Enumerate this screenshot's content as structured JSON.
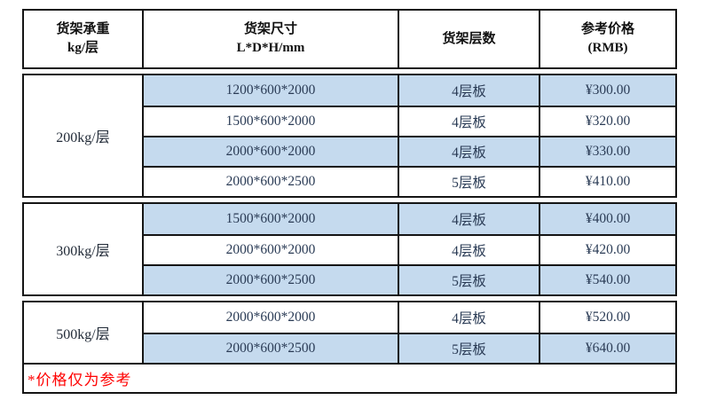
{
  "table": {
    "columns": [
      {
        "line1": "货架承重",
        "line2": "kg/层"
      },
      {
        "line1": "货架尺寸",
        "line2": "L*D*H/mm"
      },
      {
        "line1": "货架层数",
        "line2": ""
      },
      {
        "line1": "参考价格",
        "line2": "(RMB)"
      }
    ],
    "groups": [
      {
        "capacity": "200kg/层",
        "rows": [
          {
            "size": "1200*600*2000",
            "layers": "4层板",
            "price": "¥300.00",
            "highlight": true
          },
          {
            "size": "1500*600*2000",
            "layers": "4层板",
            "price": "¥320.00",
            "highlight": false
          },
          {
            "size": "2000*600*2000",
            "layers": "4层板",
            "price": "¥330.00",
            "highlight": true
          },
          {
            "size": "2000*600*2500",
            "layers": "5层板",
            "price": "¥410.00",
            "highlight": false
          }
        ]
      },
      {
        "capacity": "300kg/层",
        "rows": [
          {
            "size": "1500*600*2000",
            "layers": "4层板",
            "price": "¥400.00",
            "highlight": true
          },
          {
            "size": "2000*600*2000",
            "layers": "4层板",
            "price": "¥420.00",
            "highlight": false
          },
          {
            "size": "2000*600*2500",
            "layers": "5层板",
            "price": "¥540.00",
            "highlight": true
          }
        ]
      },
      {
        "capacity": "500kg/层",
        "rows": [
          {
            "size": "2000*600*2000",
            "layers": "4层板",
            "price": "¥520.00",
            "highlight": false
          },
          {
            "size": "2000*600*2500",
            "layers": "5层板",
            "price": "¥640.00",
            "highlight": true
          }
        ]
      }
    ],
    "note": "*价格仅为参考"
  },
  "colors": {
    "highlight_blue": "#c5daee",
    "note_red": "#ff0000",
    "data_text": "#2a3b55",
    "border": "#151515"
  }
}
